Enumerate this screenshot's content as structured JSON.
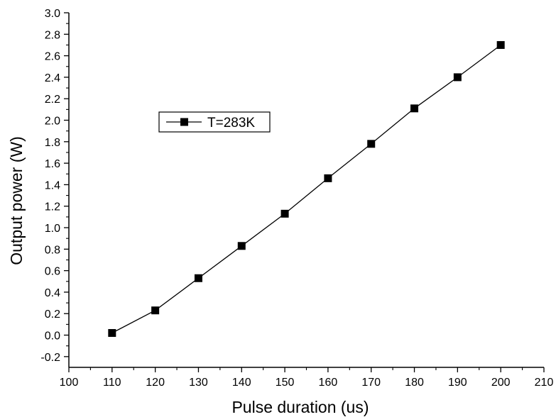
{
  "chart_data": {
    "type": "line",
    "title": "",
    "xlabel": "Pulse duration (us)",
    "ylabel": "Output power (W)",
    "xlim": [
      100,
      210
    ],
    "ylim": [
      -0.3,
      3.0
    ],
    "xticks": [
      100,
      110,
      120,
      130,
      140,
      150,
      160,
      170,
      180,
      190,
      200,
      210
    ],
    "xtick_labels": [
      "100",
      "110",
      "120",
      "130",
      "140",
      "150",
      "160",
      "170",
      "180",
      "190",
      "200",
      "210"
    ],
    "yticks": [
      -0.2,
      0.0,
      0.2,
      0.4,
      0.6,
      0.8,
      1.0,
      1.2,
      1.4,
      1.6,
      1.8,
      2.0,
      2.2,
      2.4,
      2.6,
      2.8,
      3.0
    ],
    "ytick_labels": [
      "-0.2",
      "0.0",
      "0.2",
      "0.4",
      "0.6",
      "0.8",
      "1.0",
      "1.2",
      "1.4",
      "1.6",
      "1.8",
      "2.0",
      "2.2",
      "2.4",
      "2.6",
      "2.8",
      "3.0"
    ],
    "grid": false,
    "legend_position": "upper-left",
    "series": [
      {
        "name": "T=283K",
        "marker": "square",
        "color": "#000000",
        "x": [
          110,
          120,
          130,
          140,
          150,
          160,
          170,
          180,
          190,
          200
        ],
        "y": [
          0.02,
          0.23,
          0.53,
          0.83,
          1.13,
          1.46,
          1.78,
          2.11,
          2.4,
          2.7
        ]
      }
    ]
  }
}
